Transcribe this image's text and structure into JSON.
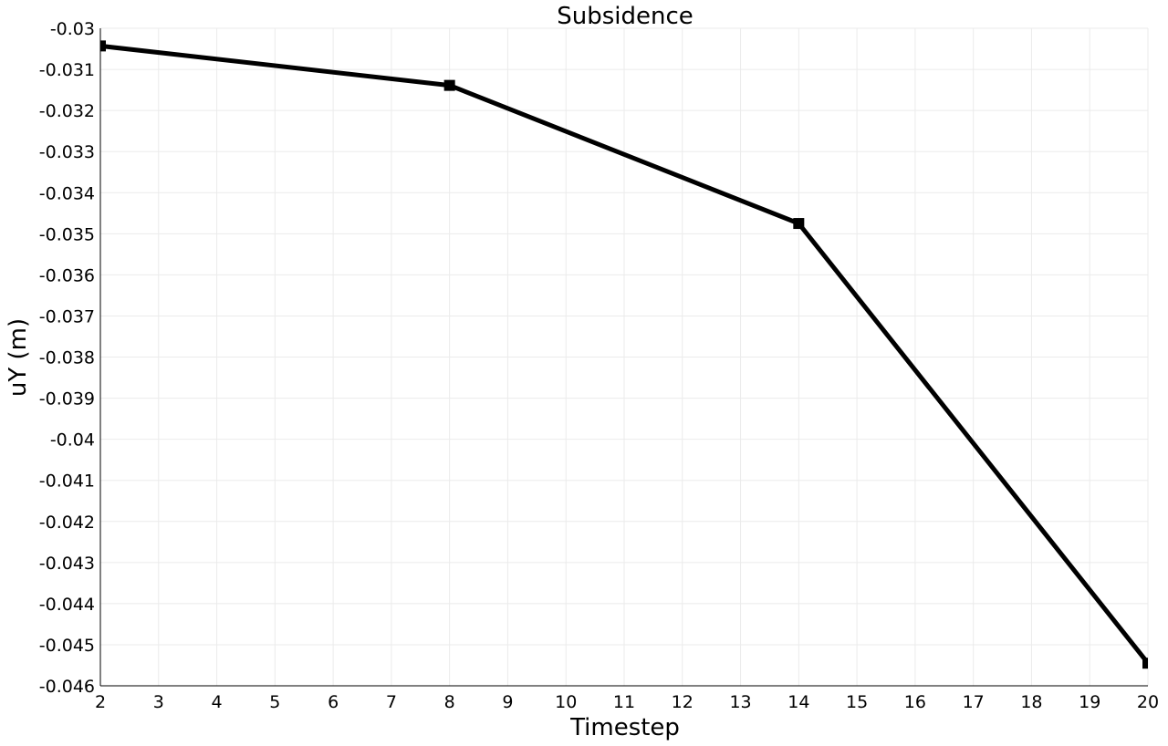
{
  "chart_data": {
    "type": "line",
    "title": "Subsidence",
    "xlabel": "Timestep",
    "ylabel": "uY (m)",
    "xlim": [
      2,
      20
    ],
    "ylim": [
      -0.046,
      -0.03
    ],
    "x_ticks": [
      2,
      3,
      4,
      5,
      6,
      7,
      8,
      9,
      10,
      11,
      12,
      13,
      14,
      15,
      16,
      17,
      18,
      19,
      20
    ],
    "x_tick_labels": [
      "2",
      "3",
      "4",
      "5",
      "6",
      "7",
      "8",
      "9",
      "10",
      "11",
      "12",
      "13",
      "14",
      "15",
      "16",
      "17",
      "18",
      "19",
      "20"
    ],
    "y_ticks": [
      -0.03,
      -0.031,
      -0.032,
      -0.033,
      -0.034,
      -0.035,
      -0.036,
      -0.037,
      -0.038,
      -0.039,
      -0.04,
      -0.041,
      -0.042,
      -0.043,
      -0.044,
      -0.045,
      -0.046
    ],
    "y_tick_labels": [
      "-0.03",
      "-0.031",
      "-0.032",
      "-0.033",
      "-0.034",
      "-0.035",
      "-0.036",
      "-0.037",
      "-0.038",
      "-0.039",
      "-0.04",
      "-0.041",
      "-0.042",
      "-0.043",
      "-0.044",
      "-0.045",
      "-0.046"
    ],
    "grid": true,
    "legend": "none",
    "series": [
      {
        "color": "#000000",
        "marker": "square",
        "x": [
          2,
          8,
          14,
          20
        ],
        "y": [
          -0.03043,
          -0.03139,
          -0.03475,
          -0.04545
        ]
      }
    ]
  }
}
